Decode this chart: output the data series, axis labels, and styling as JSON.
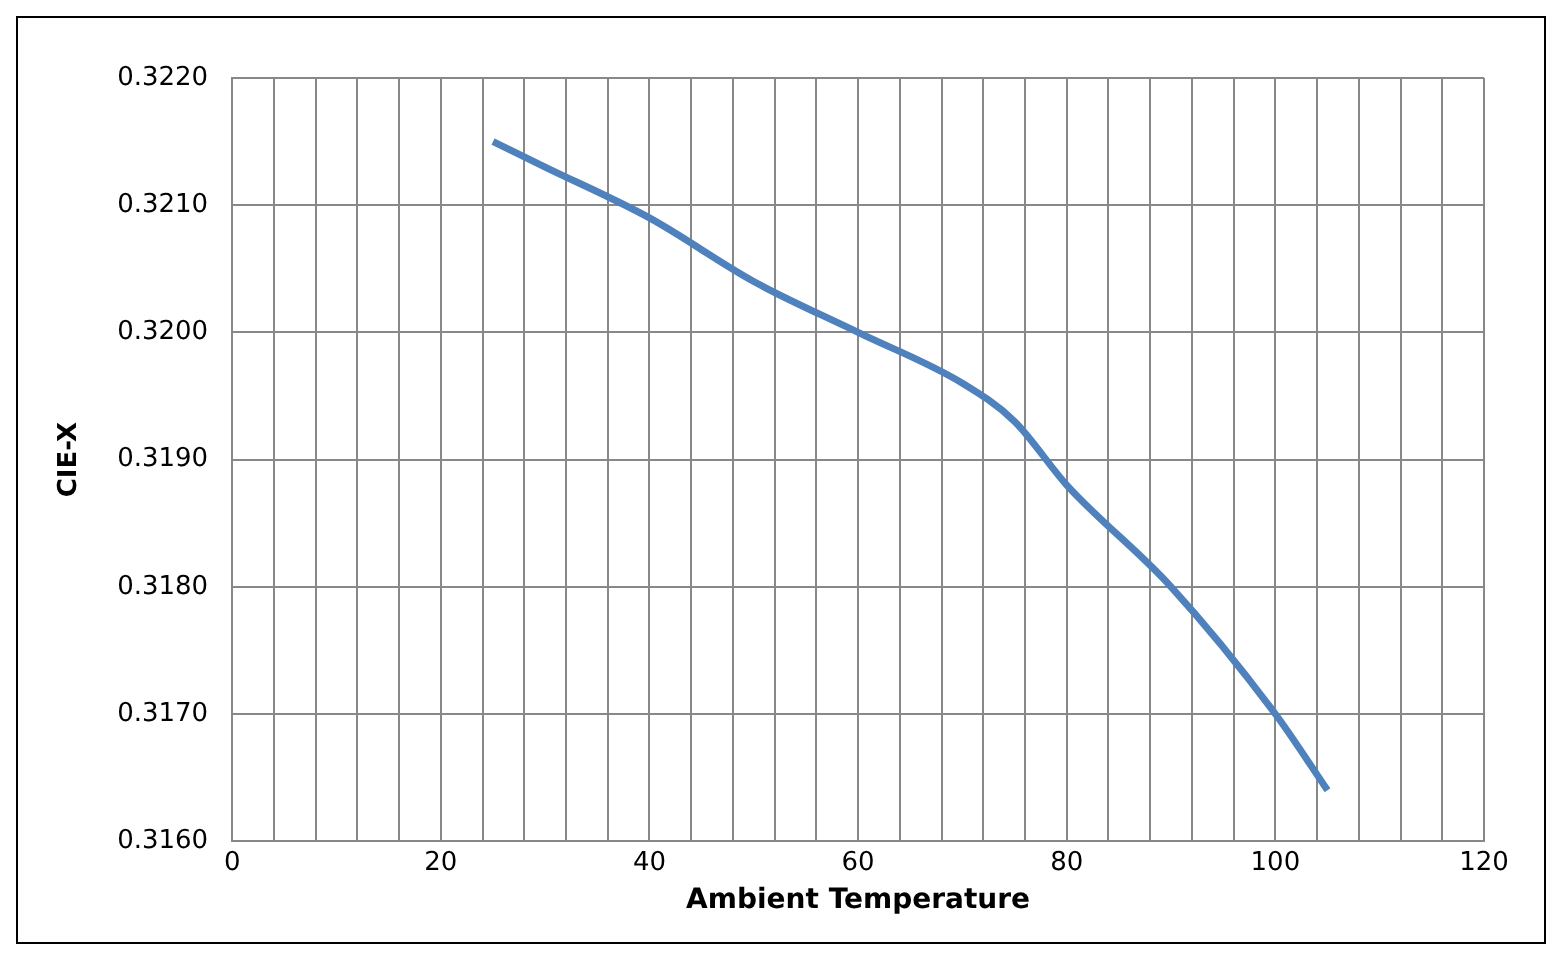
{
  "chart_data": {
    "type": "line",
    "xlabel": "Ambient Temperature",
    "ylabel": "CIE-X",
    "x": [
      25,
      30,
      40,
      50,
      60,
      70,
      75,
      80,
      90,
      100,
      105
    ],
    "series": [
      {
        "color": "#4f81bd",
        "values": [
          0.3215,
          0.3213,
          0.3209,
          0.3204,
          0.32,
          0.3196,
          0.3193,
          0.3188,
          0.318,
          0.317,
          0.3164
        ]
      }
    ],
    "xlim": [
      0,
      120
    ],
    "xticks": [
      0,
      {
        "value": 4,
        "label": null
      },
      {
        "value": 8,
        "label": null
      },
      {
        "value": 12,
        "label": null
      },
      {
        "value": 16,
        "label": null
      },
      20,
      {
        "value": 24,
        "label": null
      },
      {
        "value": 28,
        "label": null
      },
      {
        "value": 32,
        "label": null
      },
      {
        "value": 36,
        "label": null
      },
      40,
      {
        "value": 44,
        "label": null
      },
      {
        "value": 48,
        "label": null
      },
      {
        "value": 52,
        "label": null
      },
      {
        "value": 56,
        "label": null
      },
      60,
      {
        "value": 64,
        "label": null
      },
      {
        "value": 68,
        "label": null
      },
      {
        "value": 72,
        "label": null
      },
      {
        "value": 76,
        "label": null
      },
      80,
      {
        "value": 84,
        "label": null
      },
      {
        "value": 88,
        "label": null
      },
      {
        "value": 92,
        "label": null
      },
      {
        "value": 96,
        "label": null
      },
      100,
      {
        "value": 104,
        "label": null
      },
      {
        "value": 108,
        "label": null
      },
      {
        "value": 112,
        "label": null
      },
      {
        "value": 116,
        "label": null
      },
      120
    ],
    "ylim": [
      0.316,
      0.322
    ],
    "yticks": [
      {
        "value": 0.316,
        "label": "0.3160"
      },
      {
        "value": 0.317,
        "label": "0.3170"
      },
      {
        "value": 0.318,
        "label": "0.3180"
      },
      {
        "value": 0.319,
        "label": "0.3190"
      },
      {
        "value": 0.32,
        "label": "0.3200"
      },
      {
        "value": 0.321,
        "label": "0.3210"
      },
      {
        "value": 0.322,
        "label": "0.3220"
      }
    ],
    "grid": true,
    "marker": "none",
    "line_style": "solid",
    "legend": false
  }
}
